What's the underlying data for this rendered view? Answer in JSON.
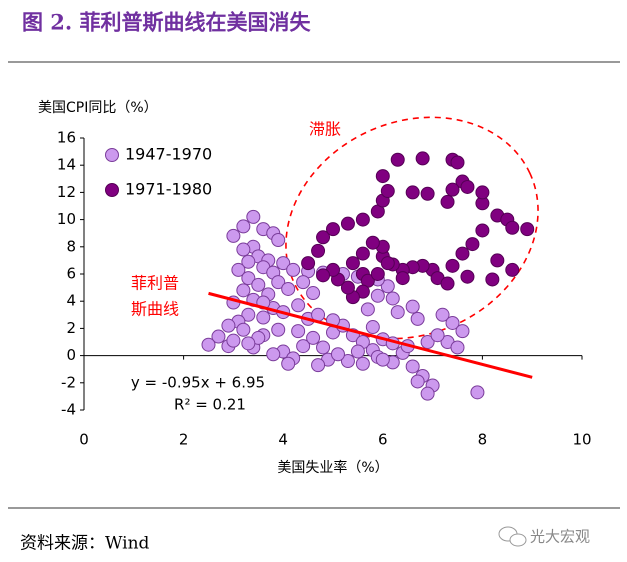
{
  "header": {
    "title": "图 2. 菲利普斯曲线在美国消失"
  },
  "chart_data": {
    "type": "scatter",
    "ylabel": "美国CPI同比（%）",
    "xlabel": "美国失业率（%）",
    "xlim": [
      0,
      10
    ],
    "xticks": [
      0,
      2,
      4,
      6,
      8,
      10
    ],
    "ylim": [
      -4,
      16
    ],
    "yticks": [
      -4,
      -2,
      0,
      2,
      4,
      6,
      8,
      10,
      12,
      14,
      16
    ],
    "legend": "top-left",
    "series": [
      {
        "name": "1947-1970",
        "color": "#cc99ee",
        "edge": "#7a3c9a",
        "x": [
          3.4,
          3.2,
          3.6,
          3.8,
          3.0,
          3.4,
          3.9,
          3.2,
          3.5,
          3.3,
          3.7,
          4.0,
          3.1,
          3.6,
          3.8,
          3.3,
          4.2,
          4.5,
          4.8,
          5.2,
          5.5,
          3.5,
          3.9,
          3.2,
          3.7,
          4.1,
          3.4,
          3.0,
          3.8,
          4.3,
          4.0,
          3.3,
          3.1,
          3.6,
          2.9,
          3.2,
          2.7,
          2.5,
          2.9,
          3.0,
          3.4,
          4.0,
          4.2,
          4.4,
          4.6,
          4.8,
          5.0,
          5.2,
          5.4,
          5.6,
          5.8,
          6.0,
          6.2,
          6.4,
          6.6,
          6.8,
          7.0,
          6.9,
          6.7,
          7.9,
          6.2,
          5.9,
          5.5,
          5.3,
          4.9,
          4.7,
          4.5,
          4.7,
          5.0,
          5.7,
          6.1,
          5.9,
          6.3,
          6.7,
          6.6,
          7.2,
          7.4,
          7.6,
          7.3,
          7.5,
          6.9,
          7.1,
          4.1,
          5.1,
          4.3,
          3.6,
          3.9,
          3.5,
          3.3,
          3.8,
          6.5,
          5.8,
          6.0,
          5.6,
          4.4,
          4.6,
          3.6,
          5.9,
          6.2
        ],
        "y": [
          10.2,
          9.5,
          9.3,
          9.0,
          8.8,
          8.0,
          8.5,
          7.8,
          7.3,
          6.9,
          7.0,
          6.8,
          6.3,
          6.5,
          6.1,
          5.7,
          6.3,
          6.2,
          6.1,
          6.0,
          5.8,
          5.2,
          5.4,
          4.8,
          4.5,
          4.9,
          4.1,
          3.9,
          3.5,
          3.7,
          3.2,
          3.0,
          2.5,
          2.8,
          2.2,
          1.9,
          1.4,
          0.8,
          0.7,
          1.1,
          0.6,
          0.3,
          -0.2,
          0.7,
          1.3,
          0.6,
          1.7,
          2.2,
          1.5,
          1.0,
          0.4,
          1.2,
          0.9,
          0.2,
          -0.8,
          -1.5,
          -2.2,
          -2.8,
          -1.9,
          -2.7,
          -0.5,
          -0.1,
          0.3,
          -0.4,
          -0.3,
          -0.7,
          2.7,
          3.0,
          2.6,
          3.4,
          5.1,
          5.6,
          3.2,
          2.7,
          3.6,
          3.0,
          2.4,
          1.8,
          1.0,
          0.6,
          1.0,
          1.5,
          -0.6,
          0.1,
          1.8,
          1.5,
          1.9,
          1.3,
          0.9,
          0.1,
          0.7,
          2.1,
          -0.3,
          -0.6,
          5.4,
          4.6,
          3.9,
          4.4,
          4.2
        ]
      },
      {
        "name": "1971-1980",
        "color": "#800080",
        "edge": "#550055",
        "x": [
          4.5,
          4.7,
          4.8,
          5.0,
          5.3,
          5.6,
          5.9,
          6.0,
          6.1,
          6.0,
          6.3,
          6.8,
          7.4,
          7.5,
          7.6,
          7.7,
          7.4,
          6.6,
          6.9,
          7.3,
          8.0,
          8.0,
          8.3,
          8.5,
          8.9,
          8.6,
          8.0,
          7.8,
          7.6,
          7.4,
          7.0,
          6.8,
          6.6,
          6.4,
          6.2,
          6.0,
          6.0,
          5.8,
          5.6,
          5.4,
          5.6,
          5.7,
          5.6,
          5.4,
          5.3,
          5.1,
          5.0,
          4.8,
          5.9,
          7.1,
          7.3,
          7.7,
          8.2,
          8.6,
          8.3,
          6.1,
          6.4
        ],
        "y": [
          6.8,
          7.7,
          8.7,
          9.3,
          9.7,
          10.0,
          10.6,
          11.4,
          12.1,
          13.2,
          14.4,
          14.5,
          14.4,
          14.2,
          12.8,
          12.4,
          12.2,
          12.0,
          11.9,
          11.3,
          11.2,
          12.0,
          10.3,
          10.0,
          9.3,
          9.4,
          9.2,
          8.2,
          7.5,
          6.6,
          6.3,
          6.6,
          6.5,
          6.3,
          6.7,
          7.3,
          8.0,
          8.3,
          7.5,
          6.8,
          6.0,
          5.5,
          4.7,
          4.3,
          5.0,
          5.6,
          6.3,
          5.9,
          6.0,
          5.7,
          5.3,
          5.8,
          5.6,
          6.3,
          7.0,
          6.8,
          5.7
        ]
      }
    ],
    "annotations": [
      "滞胀",
      "菲利普",
      "斯曲线"
    ],
    "trendline": {
      "label": "y = -0.95x + 6.95",
      "r2_label": "R² = 0.21",
      "slope": -0.95,
      "intercept": 6.95,
      "x_start": 2.5,
      "x_end": 9,
      "color": "#ff0000"
    }
  },
  "footer": {
    "source": "资料来源：Wind",
    "watermark": "光大宏观"
  }
}
